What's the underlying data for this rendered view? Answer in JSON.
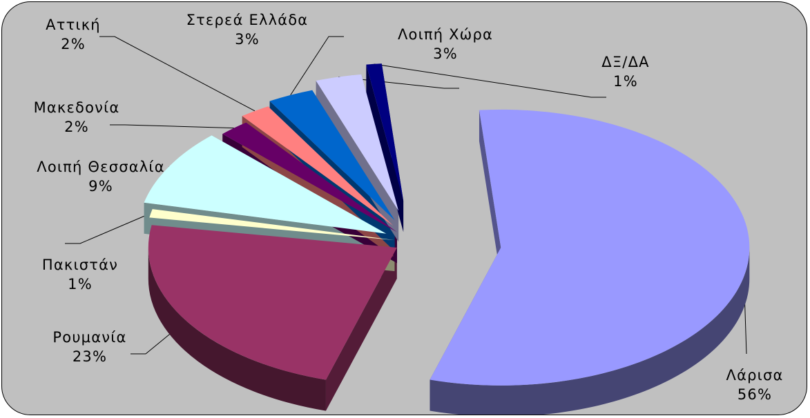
{
  "chart_data": {
    "type": "pie",
    "style": "3d-exploded",
    "title": "",
    "legend": "none",
    "slices": [
      {
        "name": "Λάρισα",
        "value": 56,
        "percent_label": "56%",
        "color": "#9999ff"
      },
      {
        "name": "Ρουμανία",
        "value": 23,
        "percent_label": "23%",
        "color": "#993366"
      },
      {
        "name": "Πακιστάν",
        "value": 1,
        "percent_label": "1%",
        "color": "#ffffcc"
      },
      {
        "name": "Λοιπή Θεσσαλία",
        "value": 9,
        "percent_label": "9%",
        "color": "#ccffff"
      },
      {
        "name": "Μακεδονία",
        "value": 2,
        "percent_label": "2%",
        "color": "#660066"
      },
      {
        "name": "Αττική",
        "value": 2,
        "percent_label": "2%",
        "color": "#ff8080"
      },
      {
        "name": "Στερεά Ελλάδα",
        "value": 3,
        "percent_label": "3%",
        "color": "#0066cc"
      },
      {
        "name": "Λοιπή Χώρα",
        "value": 3,
        "percent_label": "3%",
        "color": "#ccccff"
      },
      {
        "name": "ΔΞ/ΔΑ",
        "value": 1,
        "percent_label": "1%",
        "color": "#000080"
      }
    ]
  }
}
